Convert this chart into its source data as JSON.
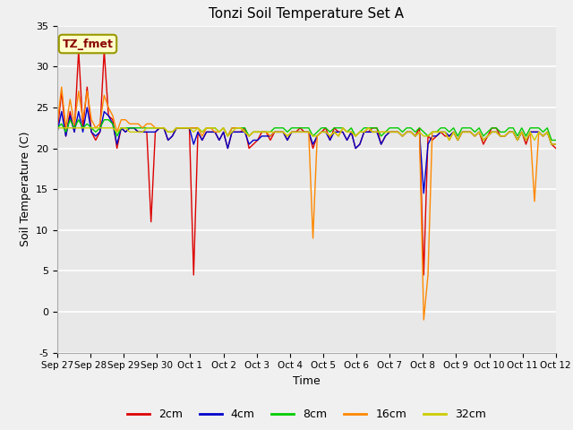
{
  "title": "Tonzi Soil Temperature Set A",
  "xlabel": "Time",
  "ylabel": "Soil Temperature (C)",
  "ylim": [
    -5,
    35
  ],
  "xlim": [
    0,
    15
  ],
  "annotation": "TZ_fmet",
  "tick_labels": [
    "Sep 27",
    "Sep 28",
    "Sep 29",
    "Sep 30",
    "Oct 1",
    "Oct 2",
    "Oct 3",
    "Oct 4",
    "Oct 5",
    "Oct 6",
    "Oct 7",
    "Oct 8",
    "Oct 9",
    "Oct 10",
    "Oct 11",
    "Oct 12"
  ],
  "series_colors": [
    "#dd0000",
    "#0000cc",
    "#00cc00",
    "#ff8800",
    "#cccc00"
  ],
  "series_names": [
    "2cm",
    "4cm",
    "8cm",
    "16cm",
    "32cm"
  ],
  "fig_facecolor": "#f0f0f0",
  "ax_facecolor": "#e8e8e8",
  "grid_color": "#ffffff",
  "yticks": [
    -5,
    0,
    5,
    10,
    15,
    20,
    25,
    30,
    35
  ],
  "series_data": {
    "2cm": [
      22.0,
      27.0,
      21.5,
      24.5,
      22.0,
      32.0,
      22.5,
      27.5,
      22.0,
      21.0,
      22.0,
      32.0,
      24.0,
      23.5,
      20.0,
      22.5,
      22.0,
      22.5,
      22.5,
      22.0,
      22.0,
      22.0,
      11.0,
      22.0,
      22.5,
      22.5,
      21.0,
      21.5,
      22.5,
      22.5,
      22.5,
      22.5,
      4.5,
      22.0,
      21.0,
      22.0,
      22.0,
      22.0,
      21.0,
      22.0,
      20.0,
      22.0,
      22.0,
      22.0,
      22.5,
      20.0,
      20.5,
      21.0,
      22.0,
      22.0,
      21.0,
      22.0,
      22.0,
      22.0,
      21.0,
      22.0,
      22.0,
      22.5,
      22.0,
      22.0,
      20.0,
      21.5,
      22.0,
      22.5,
      21.0,
      22.5,
      22.0,
      22.0,
      21.0,
      22.0,
      20.0,
      20.5,
      22.0,
      22.0,
      22.5,
      22.5,
      20.5,
      21.5,
      22.0,
      22.0,
      22.0,
      21.5,
      22.0,
      22.0,
      21.5,
      22.5,
      4.5,
      21.5,
      21.0,
      21.5,
      22.0,
      21.5,
      21.5,
      22.0,
      21.0,
      22.0,
      22.0,
      22.0,
      21.5,
      22.0,
      20.5,
      21.5,
      22.5,
      22.5,
      21.5,
      21.5,
      22.0,
      22.0,
      21.0,
      22.0,
      20.5,
      22.0,
      22.0,
      22.0,
      21.5,
      22.0,
      20.5,
      20.0
    ],
    "4cm": [
      22.0,
      24.5,
      21.5,
      24.0,
      22.0,
      24.5,
      22.0,
      25.0,
      22.0,
      21.5,
      22.0,
      24.5,
      24.0,
      23.0,
      20.5,
      22.5,
      22.0,
      22.5,
      22.5,
      22.0,
      22.0,
      22.0,
      22.0,
      22.0,
      22.5,
      22.5,
      21.0,
      21.5,
      22.5,
      22.5,
      22.5,
      22.5,
      20.5,
      22.0,
      21.0,
      22.0,
      22.0,
      22.0,
      21.0,
      22.0,
      20.0,
      22.0,
      22.0,
      22.0,
      22.0,
      20.5,
      21.0,
      21.0,
      21.5,
      21.5,
      21.5,
      22.0,
      22.0,
      22.0,
      21.0,
      22.0,
      22.0,
      22.0,
      22.0,
      22.0,
      20.5,
      21.5,
      22.0,
      22.0,
      21.0,
      22.0,
      22.0,
      22.0,
      21.0,
      22.0,
      20.0,
      20.5,
      22.0,
      22.0,
      22.0,
      22.0,
      20.5,
      21.5,
      22.0,
      22.0,
      22.0,
      21.5,
      22.0,
      22.0,
      21.5,
      22.0,
      14.5,
      20.5,
      21.5,
      21.5,
      22.0,
      22.0,
      21.5,
      22.0,
      21.0,
      22.0,
      22.0,
      22.0,
      21.5,
      22.0,
      21.0,
      21.5,
      22.0,
      22.0,
      21.5,
      21.5,
      22.0,
      22.0,
      21.0,
      22.0,
      21.0,
      22.0,
      22.0,
      22.0,
      21.5,
      22.0,
      20.5,
      20.5
    ],
    "8cm": [
      22.5,
      23.0,
      22.0,
      23.5,
      22.5,
      23.5,
      22.5,
      23.0,
      22.5,
      22.0,
      22.5,
      23.5,
      23.5,
      23.0,
      21.5,
      22.5,
      22.5,
      22.5,
      22.5,
      22.5,
      22.5,
      22.5,
      22.5,
      22.5,
      22.5,
      22.5,
      22.0,
      22.0,
      22.5,
      22.5,
      22.5,
      22.5,
      22.5,
      22.5,
      22.0,
      22.5,
      22.5,
      22.5,
      22.0,
      22.5,
      21.5,
      22.5,
      22.5,
      22.5,
      22.5,
      21.5,
      22.0,
      22.0,
      22.0,
      22.0,
      22.0,
      22.5,
      22.5,
      22.5,
      22.0,
      22.5,
      22.5,
      22.5,
      22.5,
      22.5,
      21.5,
      22.0,
      22.5,
      22.5,
      22.0,
      22.5,
      22.5,
      22.5,
      22.0,
      22.5,
      21.5,
      22.0,
      22.5,
      22.5,
      22.5,
      22.5,
      21.5,
      22.0,
      22.5,
      22.5,
      22.5,
      22.0,
      22.5,
      22.5,
      22.0,
      22.5,
      22.0,
      21.5,
      22.0,
      22.0,
      22.5,
      22.5,
      22.0,
      22.5,
      21.5,
      22.5,
      22.5,
      22.5,
      22.0,
      22.5,
      21.5,
      22.0,
      22.5,
      22.5,
      22.0,
      22.0,
      22.5,
      22.5,
      21.5,
      22.5,
      21.5,
      22.5,
      22.5,
      22.5,
      22.0,
      22.5,
      21.0,
      21.0
    ],
    "16cm": [
      23.0,
      27.5,
      22.5,
      26.0,
      23.0,
      27.0,
      23.5,
      27.0,
      23.5,
      22.5,
      23.0,
      26.5,
      25.0,
      24.0,
      22.0,
      23.5,
      23.5,
      23.0,
      23.0,
      23.0,
      22.5,
      23.0,
      23.0,
      22.5,
      22.5,
      22.5,
      22.0,
      22.0,
      22.5,
      22.5,
      22.5,
      22.5,
      22.5,
      22.5,
      21.5,
      22.5,
      22.5,
      22.0,
      22.0,
      22.5,
      21.5,
      22.5,
      22.5,
      22.5,
      22.0,
      21.5,
      22.0,
      22.0,
      22.0,
      22.0,
      21.5,
      22.0,
      22.0,
      22.0,
      21.5,
      22.0,
      22.0,
      22.0,
      22.0,
      22.0,
      9.0,
      21.5,
      22.0,
      22.0,
      21.5,
      22.0,
      21.5,
      22.5,
      22.0,
      22.0,
      21.5,
      22.0,
      22.0,
      22.5,
      22.0,
      22.0,
      22.0,
      22.0,
      22.0,
      22.0,
      22.0,
      21.5,
      22.0,
      22.0,
      21.5,
      22.0,
      -1.0,
      4.5,
      22.0,
      22.0,
      22.0,
      22.0,
      21.0,
      22.0,
      21.0,
      22.0,
      22.0,
      22.0,
      21.5,
      22.0,
      21.0,
      21.5,
      22.0,
      22.0,
      21.5,
      21.5,
      22.0,
      22.0,
      21.0,
      22.0,
      21.0,
      22.0,
      13.5,
      22.0,
      21.5,
      22.0,
      20.5,
      20.5
    ],
    "32cm": [
      22.5,
      22.5,
      22.5,
      22.5,
      22.5,
      22.5,
      22.5,
      22.5,
      22.5,
      22.5,
      22.5,
      22.5,
      22.5,
      22.5,
      22.0,
      22.5,
      22.5,
      22.0,
      22.0,
      22.0,
      22.0,
      22.5,
      22.5,
      22.5,
      22.5,
      22.5,
      22.0,
      22.0,
      22.5,
      22.5,
      22.5,
      22.5,
      22.0,
      22.5,
      22.0,
      22.5,
      22.5,
      22.5,
      22.0,
      22.5,
      21.5,
      22.0,
      22.5,
      22.5,
      22.0,
      21.5,
      22.0,
      22.0,
      22.0,
      22.0,
      22.0,
      22.0,
      22.0,
      22.0,
      21.5,
      22.0,
      22.0,
      22.0,
      22.0,
      22.0,
      21.5,
      21.5,
      22.0,
      22.0,
      21.5,
      22.0,
      21.5,
      22.5,
      22.0,
      22.0,
      21.5,
      22.0,
      22.0,
      22.5,
      22.0,
      22.0,
      22.0,
      22.0,
      22.0,
      22.0,
      22.0,
      21.5,
      22.0,
      22.0,
      21.5,
      22.0,
      21.5,
      21.5,
      22.0,
      22.0,
      22.0,
      22.0,
      21.0,
      22.0,
      21.0,
      22.0,
      22.0,
      22.0,
      21.5,
      22.0,
      21.0,
      21.5,
      22.0,
      22.0,
      21.5,
      21.5,
      22.0,
      22.0,
      21.0,
      22.0,
      21.0,
      22.0,
      21.0,
      22.0,
      21.5,
      22.0,
      20.5,
      20.5
    ]
  }
}
